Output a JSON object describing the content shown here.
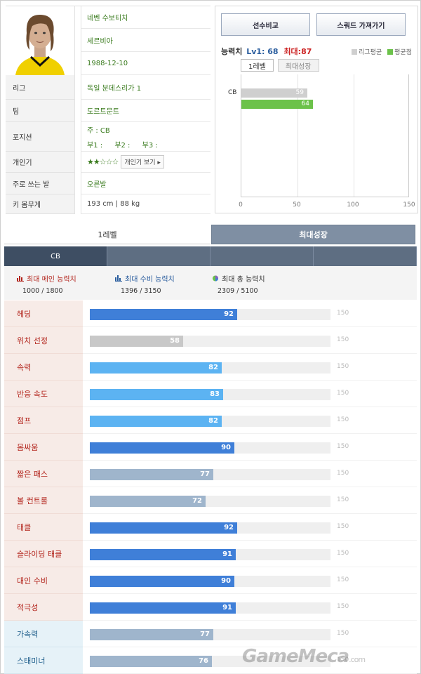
{
  "player": {
    "name": "네벤 수보티치",
    "nationality": "세르비아",
    "birth": "1988-12-10"
  },
  "info_rows": [
    {
      "label": "리그",
      "value": "독일 분데스리가 1"
    },
    {
      "label": "팀",
      "value": "도르트문트"
    },
    {
      "label": "포지션",
      "main": "주 : CB",
      "subs": [
        "부1 :",
        "부2 :",
        "부3 :"
      ]
    },
    {
      "label": "개인기",
      "stars": "★★☆☆☆",
      "button": "개인기 보기 ▸"
    },
    {
      "label": "주로 쓰는 발",
      "value": "오른발"
    },
    {
      "label": "키 몸무게",
      "value": "193 cm  |  88 kg"
    }
  ],
  "buttons": {
    "compare": "선수비교",
    "squad": "스쿼드 가져가기"
  },
  "ability": {
    "label": "능력치",
    "lv_text": "Lv1: 68",
    "max_text": "최대:87",
    "legend_league": "리그평균",
    "legend_avg": "평균점",
    "tabs": [
      "1레벨",
      "최대성장"
    ]
  },
  "colors": {
    "league_avg": "#cfcfcf",
    "avg_point": "#6cc24a",
    "main_dark": "#3f7fd8",
    "main_light": "#5cb3f2",
    "grey": "#c8c8c8",
    "steel": "#9fb5cc",
    "tab_off": "#7f8fa3"
  },
  "chart_data": {
    "type": "bar",
    "orientation": "horizontal",
    "categories": [
      "CB"
    ],
    "series": [
      {
        "name": "리그평균",
        "values": [
          59
        ]
      },
      {
        "name": "평균점",
        "values": [
          64
        ]
      }
    ],
    "xlim": [
      0,
      150
    ],
    "xticks": [
      0,
      50,
      100,
      150
    ],
    "grid": true,
    "legend": "top-right"
  },
  "big_tabs": [
    "1레벨",
    "최대성장"
  ],
  "positions": [
    "CB",
    "",
    "",
    ""
  ],
  "summary": [
    {
      "label": "최대 메인 능력치",
      "value": "1000 / 1800",
      "color": "#b3261e",
      "icon": "bar-chart-red-icon"
    },
    {
      "label": "최대 수비 능력치",
      "value": "1396 / 3150",
      "color": "#2a5d9e",
      "icon": "bar-chart-blue-icon"
    },
    {
      "label": "최대 총 능력치",
      "value": "2309 / 5100",
      "color": "#333333",
      "icon": "pie-chart-icon"
    }
  ],
  "stats": [
    {
      "label": "헤딩",
      "value": 92,
      "max": 150,
      "kind": "main",
      "color": "#3f7fd8"
    },
    {
      "label": "위치 선정",
      "value": 58,
      "max": 150,
      "kind": "main",
      "color": "#c8c8c8"
    },
    {
      "label": "속력",
      "value": 82,
      "max": 150,
      "kind": "main",
      "color": "#5cb3f2"
    },
    {
      "label": "반응 속도",
      "value": 83,
      "max": 150,
      "kind": "main",
      "color": "#5cb3f2"
    },
    {
      "label": "점프",
      "value": 82,
      "max": 150,
      "kind": "main",
      "color": "#5cb3f2"
    },
    {
      "label": "몸싸움",
      "value": 90,
      "max": 150,
      "kind": "main",
      "color": "#3f7fd8"
    },
    {
      "label": "짧은 패스",
      "value": 77,
      "max": 150,
      "kind": "main",
      "color": "#9fb5cc"
    },
    {
      "label": "볼 컨트롤",
      "value": 72,
      "max": 150,
      "kind": "main",
      "color": "#9fb5cc"
    },
    {
      "label": "태클",
      "value": 92,
      "max": 150,
      "kind": "main",
      "color": "#3f7fd8"
    },
    {
      "label": "슬라이딩 태클",
      "value": 91,
      "max": 150,
      "kind": "main",
      "color": "#3f7fd8"
    },
    {
      "label": "대인 수비",
      "value": 90,
      "max": 150,
      "kind": "main",
      "color": "#3f7fd8"
    },
    {
      "label": "적극성",
      "value": 91,
      "max": 150,
      "kind": "main",
      "color": "#3f7fd8"
    },
    {
      "label": "가속력",
      "value": 77,
      "max": 150,
      "kind": "sub",
      "color": "#9fb5cc"
    },
    {
      "label": "스태미너",
      "value": 76,
      "max": 150,
      "kind": "sub",
      "color": "#9fb5cc"
    }
  ],
  "watermark": {
    "brand": "GameMeca",
    "suffix": ".com"
  }
}
